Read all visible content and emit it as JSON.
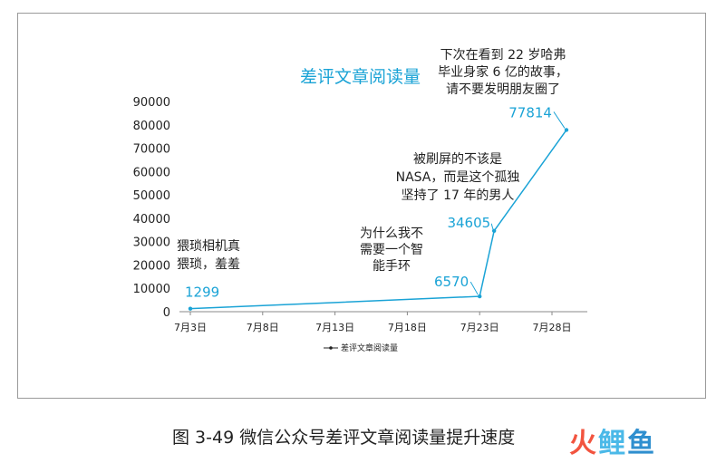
{
  "chart_data": {
    "type": "line",
    "title": "差评文章阅读量",
    "x_tick_labels": [
      "7月3日",
      "7月8日",
      "7月13日",
      "7月18日",
      "7月23日",
      "7月28日"
    ],
    "x_ticks_day": [
      3,
      8,
      13,
      18,
      23,
      28
    ],
    "y_tick_labels": [
      "0",
      "10000",
      "20000",
      "30000",
      "40000",
      "50000",
      "60000",
      "70000",
      "80000",
      "90000"
    ],
    "ylim": [
      0,
      90000
    ],
    "xlim_day": [
      3,
      28
    ],
    "series": [
      {
        "name": "差评文章阅读量",
        "color": "#1aa3d6",
        "points": [
          {
            "day": 3,
            "value": 1299,
            "label": "1299"
          },
          {
            "day": 23,
            "value": 6570,
            "label": "6570"
          },
          {
            "day": 24,
            "value": 34605,
            "label": "34605"
          },
          {
            "day": 29,
            "value": 77814,
            "label": "77814"
          }
        ]
      }
    ],
    "annotations": [
      {
        "lines": [
          "猥琐相机真",
          "猥琐，羞羞"
        ]
      },
      {
        "lines": [
          "为什么我不",
          "需要一个智",
          "能手环"
        ]
      },
      {
        "lines": [
          "被刷屏的不该是",
          "NASA，而是这个孤独",
          "坚持了 17 年的男人"
        ]
      },
      {
        "lines": [
          "下次在看到 22 岁哈弗",
          "毕业身家 6 亿的故事，",
          "请不要发明朋友圈了"
        ]
      }
    ],
    "legend": {
      "position": "bottom-center",
      "label": "差评文章阅读量"
    },
    "grid": false
  },
  "caption": "图 3-49 微信公众号差评文章阅读量提升速度",
  "logo": {
    "chars": [
      "火",
      "鲤",
      "鱼"
    ],
    "colors": [
      "#f2543f",
      "#4bb9e8",
      "#2f8fcf"
    ]
  }
}
